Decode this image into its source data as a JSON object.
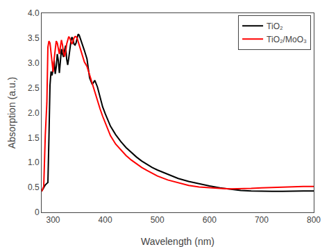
{
  "chart_data": {
    "type": "line",
    "xlabel": "Wavelength (nm)",
    "ylabel": "Absorption (a.u.)",
    "x": [
      278,
      282,
      285,
      288,
      290,
      292,
      294,
      296,
      298,
      300,
      302,
      304,
      306,
      308,
      310,
      312,
      314,
      316,
      318,
      320,
      322,
      324,
      326,
      328,
      330,
      332,
      334,
      336,
      338,
      340,
      342,
      344,
      346,
      348,
      350,
      355,
      360,
      365,
      370,
      375,
      380,
      385,
      390,
      395,
      400,
      410,
      420,
      430,
      440,
      450,
      460,
      470,
      480,
      490,
      500,
      520,
      540,
      560,
      580,
      600,
      620,
      640,
      660,
      680,
      700,
      720,
      740,
      760,
      780,
      800
    ],
    "series": [
      {
        "name": "TiO₂",
        "color": "black",
        "values": [
          0.42,
          0.5,
          0.55,
          0.58,
          0.6,
          1.5,
          2.55,
          2.83,
          2.75,
          2.88,
          3.05,
          2.78,
          2.92,
          3.18,
          3.05,
          2.8,
          3.08,
          3.28,
          3.18,
          3.12,
          3.25,
          3.35,
          3.08,
          2.96,
          3.1,
          3.28,
          3.42,
          3.52,
          3.48,
          3.38,
          3.36,
          3.4,
          3.5,
          3.58,
          3.56,
          3.42,
          3.25,
          3.08,
          2.7,
          2.57,
          2.65,
          2.52,
          2.32,
          2.12,
          1.98,
          1.73,
          1.56,
          1.42,
          1.3,
          1.2,
          1.11,
          1.03,
          0.96,
          0.9,
          0.85,
          0.76,
          0.68,
          0.62,
          0.57,
          0.53,
          0.49,
          0.46,
          0.44,
          0.43,
          0.42,
          0.42,
          0.42,
          0.43,
          0.43,
          0.43
        ]
      },
      {
        "name": "TiO₂/MoO₃",
        "color": "red",
        "values": [
          0.42,
          0.52,
          1.55,
          2.2,
          3.32,
          3.44,
          3.4,
          3.22,
          3.03,
          2.82,
          3.08,
          3.28,
          3.44,
          3.4,
          3.28,
          3.18,
          3.33,
          3.46,
          3.36,
          3.2,
          3.13,
          3.22,
          3.38,
          3.48,
          3.53,
          3.5,
          3.43,
          3.38,
          3.43,
          3.5,
          3.53,
          3.53,
          3.5,
          3.43,
          3.36,
          3.2,
          3.02,
          2.93,
          2.76,
          2.6,
          2.43,
          2.23,
          2.08,
          1.93,
          1.8,
          1.54,
          1.37,
          1.25,
          1.14,
          1.05,
          0.97,
          0.9,
          0.84,
          0.78,
          0.73,
          0.65,
          0.59,
          0.54,
          0.51,
          0.49,
          0.48,
          0.47,
          0.47,
          0.48,
          0.49,
          0.5,
          0.51,
          0.51,
          0.52,
          0.52
        ]
      }
    ],
    "xlim": [
      278,
      800
    ],
    "ylim": [
      0.0,
      4.0
    ],
    "xticks": [
      300,
      400,
      500,
      600,
      700,
      800
    ],
    "yticks": [
      0,
      {
        "value": 0.5,
        "label": "0.5"
      },
      {
        "value": 1.0,
        "label": "1.0"
      },
      {
        "value": 1.5,
        "label": "1.5"
      },
      {
        "value": 2.0,
        "label": "2.0"
      },
      {
        "value": 2.5,
        "label": "2.5"
      },
      {
        "value": 3.0,
        "label": "3.0"
      },
      {
        "value": 3.5,
        "label": "3.5"
      },
      {
        "value": 4.0,
        "label": "4.0"
      }
    ],
    "grid": false,
    "legend": "upper right"
  }
}
